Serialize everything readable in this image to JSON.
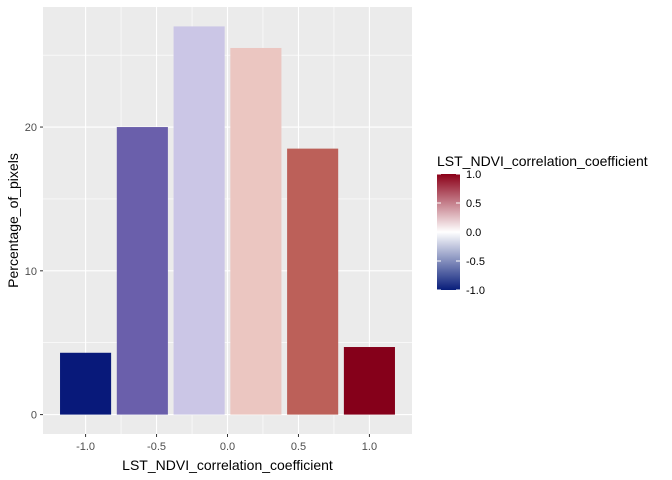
{
  "chart_data": {
    "type": "bar",
    "x": [
      -1.0,
      -0.5,
      0.0,
      0.5,
      1.0
    ],
    "bars": [
      {
        "x": -1.0,
        "value": 4.3,
        "fill": "#08197a"
      },
      {
        "x": -0.6,
        "value": 20.0,
        "fill": "#6a5fab"
      },
      {
        "x": -0.2,
        "value": 27.0,
        "fill": "#cbc6e6"
      },
      {
        "x": 0.2,
        "value": 25.5,
        "fill": "#ebc6c1"
      },
      {
        "x": 0.6,
        "value": 18.5,
        "fill": "#bc6059"
      },
      {
        "x": 1.0,
        "value": 4.7,
        "fill": "#85001a"
      }
    ],
    "xlabel": "LST_NDVI_correlation_coefficient",
    "ylabel": "Percentage_of_pixels",
    "xlim": [
      -1.3,
      1.3
    ],
    "ylim": [
      -1.35,
      28.35
    ],
    "x_ticks": [
      -1.0,
      -0.5,
      0.0,
      0.5,
      1.0
    ],
    "x_tick_labels": [
      "-1.0",
      "-0.5",
      "0.0",
      "0.5",
      "1.0"
    ],
    "y_ticks": [
      0,
      10,
      20
    ],
    "y_tick_labels": [
      "0",
      "10",
      "20"
    ],
    "grid": true,
    "legend": {
      "title": "LST_NDVI_correlation_coefficient",
      "placement": "right",
      "range": [
        -1.0,
        1.0
      ],
      "breaks": [
        1.0,
        0.5,
        0.0,
        -0.5,
        -1.0
      ],
      "labels": [
        "1.0",
        "0.5",
        "0.0",
        "-0.5",
        "-1.0"
      ],
      "low_color": "#081d7a",
      "mid_color": "#ffffff",
      "high_color": "#8b0018"
    },
    "panel_background": "#ebebeb",
    "grid_color": "#ffffff"
  }
}
